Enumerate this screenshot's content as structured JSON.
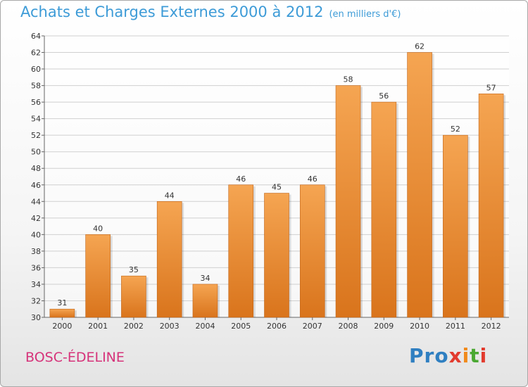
{
  "title": "Achats et Charges Externes 2000 à 2012",
  "subtitle": "(en milliers d'€)",
  "commune": "BOSC-ÉDELINE",
  "logo": {
    "text": "Proxiti",
    "letters": [
      "P",
      "r",
      "o",
      "x",
      "i",
      "t",
      "i"
    ],
    "colors": [
      "#2f7fc1",
      "#2f7fc1",
      "#2f7fc1",
      "#e23b2e",
      "#f08a1c",
      "#4aa832",
      "#e23b2e"
    ]
  },
  "colors": {
    "bar_top": "#f5a552",
    "bar_bottom": "#d9741c",
    "bar_edge": "#c0651a",
    "title": "#3d9bd7",
    "commune": "#d6337a"
  },
  "chart_data": {
    "type": "bar",
    "title": "Achats et Charges Externes 2000 à 2012",
    "subtitle": "(en milliers d'€)",
    "xlabel": "",
    "ylabel": "",
    "categories": [
      "2000",
      "2001",
      "2002",
      "2003",
      "2004",
      "2005",
      "2006",
      "2007",
      "2008",
      "2009",
      "2010",
      "2011",
      "2012"
    ],
    "values": [
      31,
      40,
      35,
      44,
      34,
      46,
      45,
      46,
      58,
      56,
      62,
      52,
      57
    ],
    "ylim": [
      30,
      64
    ],
    "yticks": [
      30,
      32,
      34,
      36,
      38,
      40,
      42,
      44,
      46,
      48,
      50,
      52,
      54,
      56,
      58,
      60,
      62,
      64
    ],
    "grid": true,
    "legend": "none"
  }
}
